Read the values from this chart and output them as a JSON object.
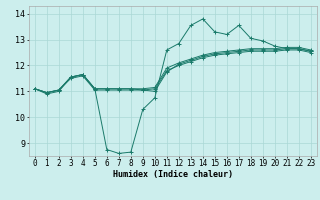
{
  "title": "",
  "xlabel": "Humidex (Indice chaleur)",
  "xlim": [
    -0.5,
    23.5
  ],
  "ylim": [
    8.5,
    14.3
  ],
  "xticks": [
    0,
    1,
    2,
    3,
    4,
    5,
    6,
    7,
    8,
    9,
    10,
    11,
    12,
    13,
    14,
    15,
    16,
    17,
    18,
    19,
    20,
    21,
    22,
    23
  ],
  "yticks": [
    9,
    10,
    11,
    12,
    13,
    14
  ],
  "bg_color": "#cceeed",
  "grid_color": "#aad8d5",
  "line_color": "#1a7a6a",
  "line1_x": [
    0,
    1,
    2,
    3,
    4,
    5,
    6,
    7,
    8,
    9,
    10,
    11,
    12,
    13,
    14,
    15,
    16,
    17,
    18,
    19,
    20,
    21,
    22,
    23
  ],
  "line1_y": [
    11.1,
    10.9,
    11.0,
    11.55,
    11.65,
    11.1,
    8.75,
    8.6,
    8.65,
    10.3,
    10.75,
    12.6,
    12.85,
    13.55,
    13.8,
    13.3,
    13.2,
    13.55,
    13.05,
    12.95,
    12.75,
    12.65,
    12.65,
    12.55
  ],
  "line2_x": [
    0,
    1,
    2,
    3,
    4,
    5,
    6,
    7,
    8,
    9,
    10,
    11,
    12,
    13,
    14,
    15,
    16,
    17,
    18,
    19,
    20,
    21,
    22,
    23
  ],
  "line2_y": [
    11.1,
    10.95,
    11.05,
    11.55,
    11.65,
    11.1,
    11.1,
    11.1,
    11.1,
    11.05,
    11.0,
    11.75,
    12.05,
    12.2,
    12.35,
    12.45,
    12.5,
    12.55,
    12.6,
    12.6,
    12.6,
    12.65,
    12.65,
    12.55
  ],
  "line3_x": [
    0,
    1,
    2,
    3,
    4,
    5,
    6,
    7,
    8,
    9,
    10,
    11,
    12,
    13,
    14,
    15,
    16,
    17,
    18,
    19,
    20,
    21,
    22,
    23
  ],
  "line3_y": [
    11.1,
    10.95,
    11.05,
    11.55,
    11.65,
    11.1,
    11.1,
    11.1,
    11.1,
    11.1,
    11.15,
    11.9,
    12.1,
    12.25,
    12.4,
    12.5,
    12.55,
    12.6,
    12.65,
    12.65,
    12.65,
    12.7,
    12.7,
    12.6
  ],
  "line4_x": [
    0,
    1,
    2,
    3,
    4,
    5,
    6,
    7,
    8,
    9,
    10,
    11,
    12,
    13,
    14,
    15,
    16,
    17,
    18,
    19,
    20,
    21,
    22,
    23
  ],
  "line4_y": [
    11.1,
    10.95,
    11.05,
    11.5,
    11.6,
    11.05,
    11.05,
    11.05,
    11.05,
    11.05,
    11.1,
    11.8,
    12.0,
    12.15,
    12.3,
    12.4,
    12.45,
    12.5,
    12.55,
    12.55,
    12.55,
    12.6,
    12.6,
    12.5
  ],
  "xlabel_fontsize": 6,
  "tick_fontsize": 5.5
}
